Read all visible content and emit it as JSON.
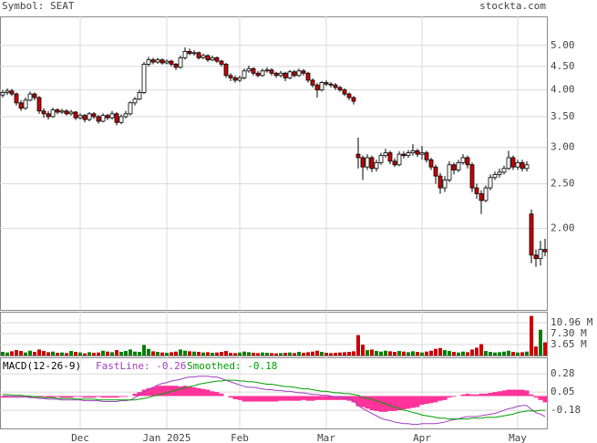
{
  "header": {
    "symbol": "Symbol: SEAT",
    "site": "stockta.com"
  },
  "chart_data": [
    {
      "type": "candlestick",
      "categories": [
        null,
        null,
        null,
        null,
        null,
        null,
        null,
        null,
        null,
        null,
        null,
        null,
        null,
        null,
        null,
        null,
        null,
        "Dec",
        null,
        null,
        null,
        null,
        null,
        null,
        null,
        null,
        null,
        null,
        null,
        null,
        null,
        null,
        null,
        null,
        null,
        null,
        "Jan 2025",
        null,
        null,
        null,
        null,
        null,
        null,
        null,
        null,
        null,
        null,
        null,
        null,
        null,
        null,
        null,
        "Feb",
        null,
        null,
        null,
        null,
        null,
        null,
        null,
        null,
        null,
        null,
        null,
        null,
        null,
        null,
        null,
        null,
        null,
        null,
        "Mar",
        null,
        null,
        null,
        null,
        null,
        null,
        null,
        null,
        null,
        null,
        null,
        null,
        null,
        null,
        null,
        null,
        null,
        null,
        null,
        null,
        "Apr",
        null,
        null,
        null,
        null,
        null,
        null,
        null,
        null,
        null,
        null,
        null,
        null,
        null,
        null,
        null,
        null,
        null,
        null,
        null,
        null,
        "May",
        null,
        null,
        null,
        null,
        null,
        null
      ],
      "open": [
        3.9,
        3.95,
        3.98,
        3.92,
        3.75,
        3.65,
        3.8,
        3.92,
        3.85,
        3.6,
        3.55,
        3.5,
        3.62,
        3.58,
        3.6,
        3.55,
        3.58,
        3.48,
        3.52,
        3.45,
        3.55,
        3.5,
        3.42,
        3.52,
        3.48,
        3.55,
        3.4,
        3.5,
        3.55,
        3.75,
        3.82,
        3.95,
        4.55,
        4.65,
        4.6,
        4.65,
        4.58,
        4.62,
        4.55,
        4.48,
        4.7,
        4.85,
        4.8,
        4.82,
        4.7,
        4.75,
        4.65,
        4.7,
        4.62,
        4.55,
        4.3,
        4.25,
        4.2,
        4.25,
        4.4,
        4.45,
        4.35,
        4.3,
        4.4,
        4.42,
        4.35,
        4.3,
        4.35,
        4.25,
        4.38,
        4.3,
        4.4,
        4.35,
        4.2,
        4.1,
        4.0,
        4.15,
        4.12,
        4.1,
        4.05,
        4.0,
        3.92,
        3.85,
        2.9,
        2.85,
        2.72,
        2.85,
        2.7,
        2.78,
        2.88,
        2.92,
        2.8,
        2.75,
        2.9,
        2.88,
        2.92,
        2.95,
        2.9,
        2.92,
        2.82,
        2.72,
        2.6,
        2.45,
        2.55,
        2.75,
        2.68,
        2.78,
        2.85,
        2.75,
        2.45,
        2.38,
        2.3,
        2.45,
        2.58,
        2.62,
        2.65,
        2.7,
        2.85,
        2.72,
        2.78,
        2.7,
        2.15,
        1.75,
        1.72,
        1.8
      ],
      "high": [
        4.0,
        4.03,
        4.02,
        3.95,
        3.8,
        3.85,
        3.97,
        3.95,
        3.88,
        3.65,
        3.6,
        3.66,
        3.65,
        3.64,
        3.63,
        3.62,
        3.6,
        3.56,
        3.55,
        3.58,
        3.58,
        3.53,
        3.56,
        3.55,
        3.6,
        3.58,
        3.54,
        3.6,
        3.78,
        3.86,
        4.0,
        4.6,
        4.72,
        4.7,
        4.7,
        4.68,
        4.66,
        4.65,
        4.58,
        4.75,
        4.95,
        4.92,
        4.88,
        4.85,
        4.8,
        4.78,
        4.75,
        4.73,
        4.65,
        4.58,
        4.35,
        4.3,
        4.3,
        4.45,
        4.52,
        4.48,
        4.4,
        4.45,
        4.48,
        4.46,
        4.38,
        4.4,
        4.38,
        4.42,
        4.42,
        4.45,
        4.44,
        4.38,
        4.24,
        4.14,
        4.18,
        4.2,
        4.16,
        4.14,
        4.08,
        4.03,
        3.95,
        3.88,
        3.15,
        2.88,
        2.9,
        2.88,
        2.82,
        2.92,
        2.98,
        2.95,
        2.84,
        2.94,
        2.94,
        2.96,
        3.05,
        2.98,
        3.02,
        2.95,
        2.85,
        2.75,
        2.64,
        2.6,
        2.8,
        2.78,
        2.82,
        2.9,
        2.88,
        2.78,
        2.5,
        2.42,
        2.48,
        2.62,
        2.66,
        2.7,
        2.74,
        2.95,
        2.88,
        2.82,
        2.82,
        2.8,
        2.2,
        1.8,
        1.88,
        1.9
      ],
      "low": [
        3.85,
        3.9,
        3.88,
        3.7,
        3.6,
        3.62,
        3.78,
        3.8,
        3.55,
        3.48,
        3.45,
        3.48,
        3.54,
        3.55,
        3.52,
        3.52,
        3.44,
        3.45,
        3.4,
        3.42,
        3.46,
        3.38,
        3.4,
        3.44,
        3.45,
        3.35,
        3.37,
        3.47,
        3.52,
        3.7,
        3.8,
        3.92,
        4.5,
        4.55,
        4.56,
        4.54,
        4.55,
        4.5,
        4.42,
        4.45,
        4.66,
        4.76,
        4.75,
        4.66,
        4.67,
        4.6,
        4.62,
        4.58,
        4.5,
        4.25,
        4.18,
        4.15,
        4.16,
        4.22,
        4.36,
        4.3,
        4.26,
        4.27,
        4.36,
        4.3,
        4.25,
        4.26,
        4.18,
        4.22,
        4.26,
        4.27,
        4.3,
        4.15,
        4.05,
        3.85,
        3.97,
        4.08,
        4.05,
        4.0,
        3.96,
        3.88,
        3.8,
        3.72,
        2.7,
        2.55,
        2.68,
        2.65,
        2.66,
        2.75,
        2.85,
        2.76,
        2.72,
        2.73,
        2.84,
        2.85,
        2.88,
        2.86,
        2.82,
        2.78,
        2.68,
        2.5,
        2.38,
        2.4,
        2.52,
        2.62,
        2.65,
        2.75,
        2.7,
        2.4,
        2.32,
        2.15,
        2.28,
        2.42,
        2.55,
        2.58,
        2.62,
        2.68,
        2.68,
        2.68,
        2.66,
        2.66,
        1.68,
        1.65,
        1.66,
        1.74
      ],
      "close": [
        3.95,
        3.98,
        3.92,
        3.75,
        3.65,
        3.8,
        3.92,
        3.85,
        3.6,
        3.55,
        3.5,
        3.62,
        3.58,
        3.6,
        3.55,
        3.58,
        3.48,
        3.52,
        3.45,
        3.55,
        3.5,
        3.42,
        3.52,
        3.48,
        3.55,
        3.4,
        3.5,
        3.55,
        3.75,
        3.82,
        3.95,
        4.55,
        4.65,
        4.6,
        4.65,
        4.58,
        4.62,
        4.55,
        4.48,
        4.7,
        4.85,
        4.8,
        4.82,
        4.7,
        4.75,
        4.65,
        4.7,
        4.62,
        4.55,
        4.3,
        4.25,
        4.2,
        4.25,
        4.4,
        4.45,
        4.35,
        4.3,
        4.4,
        4.42,
        4.35,
        4.3,
        4.35,
        4.25,
        4.38,
        4.3,
        4.4,
        4.35,
        4.2,
        4.1,
        4.0,
        4.15,
        4.12,
        4.1,
        4.05,
        4.0,
        3.92,
        3.85,
        3.78,
        2.85,
        2.72,
        2.85,
        2.7,
        2.78,
        2.88,
        2.92,
        2.8,
        2.75,
        2.9,
        2.88,
        2.92,
        2.95,
        2.9,
        2.92,
        2.82,
        2.72,
        2.6,
        2.45,
        2.55,
        2.75,
        2.68,
        2.78,
        2.85,
        2.75,
        2.45,
        2.38,
        2.3,
        2.45,
        2.58,
        2.62,
        2.65,
        2.7,
        2.85,
        2.72,
        2.78,
        2.7,
        2.75,
        1.75,
        1.72,
        1.8,
        1.78
      ],
      "ylim": [
        1.33,
        5.78
      ],
      "log_scale": true,
      "yticks": [
        {
          "value": 5,
          "label": "5.00"
        },
        {
          "value": 4.5,
          "label": "4.50"
        },
        {
          "value": 4,
          "label": "4.00"
        },
        {
          "value": 3.5,
          "label": "3.50"
        },
        {
          "value": 3,
          "label": "3.00"
        },
        {
          "value": 2.5,
          "label": "2.50"
        },
        {
          "value": 2,
          "label": "2.00"
        }
      ],
      "up_color": "#ffffff",
      "down_color": "#cc0000",
      "grid": true
    },
    {
      "type": "bar",
      "values": [
        1.2,
        1.0,
        1.4,
        1.8,
        1.5,
        1.0,
        1.6,
        1.2,
        2.0,
        1.5,
        1.1,
        1.3,
        0.9,
        1.0,
        0.8,
        1.5,
        1.2,
        1.0,
        0.7,
        1.1,
        0.9,
        1.0,
        1.6,
        1.3,
        1.1,
        1.8,
        1.2,
        1.5,
        2.0,
        1.3,
        1.2,
        3.5,
        2.2,
        1.4,
        1.2,
        1.0,
        0.9,
        1.1,
        1.3,
        2.0,
        1.6,
        1.4,
        1.3,
        1.2,
        1.0,
        1.1,
        0.9,
        1.0,
        1.2,
        1.5,
        0.9,
        0.8,
        1.0,
        1.3,
        1.1,
        0.9,
        0.8,
        1.0,
        0.9,
        0.8,
        0.7,
        0.8,
        0.9,
        1.0,
        0.8,
        1.2,
        0.9,
        1.1,
        1.3,
        1.6,
        1.2,
        0.9,
        0.8,
        0.9,
        1.0,
        1.1,
        1.2,
        1.4,
        6.8,
        3.6,
        1.8,
        2.0,
        1.5,
        1.3,
        1.6,
        1.4,
        1.2,
        1.5,
        1.3,
        1.1,
        1.4,
        1.2,
        1.0,
        1.3,
        1.6,
        2.2,
        2.5,
        1.8,
        1.5,
        1.2,
        1.0,
        1.3,
        1.1,
        2.0,
        2.6,
        3.8,
        1.5,
        1.2,
        1.0,
        1.1,
        1.3,
        1.6,
        1.2,
        1.0,
        1.1,
        1.3,
        13.2,
        3.0,
        8.6,
        4.4
      ],
      "ylim": [
        0,
        14.6
      ],
      "yticks": [
        {
          "value": 10.96,
          "label": "10.96 M"
        },
        {
          "value": 7.3,
          "label": "7.30 M"
        },
        {
          "value": 3.65,
          "label": "3.65 M"
        }
      ],
      "up_color": "#008000",
      "down_color": "#cc0000"
    },
    {
      "type": "macd",
      "title": "MACD(12-26-9)",
      "series": [
        {
          "name": "FastLine: -0.26",
          "color": "#a040c0",
          "values": [
            0.0,
            0.0,
            -0.01,
            -0.01,
            -0.01,
            -0.01,
            -0.02,
            -0.02,
            -0.03,
            -0.03,
            -0.04,
            -0.04,
            -0.04,
            -0.05,
            -0.05,
            -0.05,
            -0.05,
            -0.05,
            -0.06,
            -0.06,
            -0.06,
            -0.06,
            -0.07,
            -0.07,
            -0.07,
            -0.07,
            -0.06,
            -0.06,
            -0.05,
            -0.02,
            0.01,
            0.05,
            0.08,
            0.11,
            0.14,
            0.16,
            0.17,
            0.19,
            0.2,
            0.21,
            0.23,
            0.24,
            0.24,
            0.25,
            0.25,
            0.25,
            0.24,
            0.24,
            0.22,
            0.2,
            0.18,
            0.16,
            0.14,
            0.12,
            0.11,
            0.11,
            0.1,
            0.09,
            0.08,
            0.08,
            0.07,
            0.07,
            0.06,
            0.06,
            0.05,
            0.04,
            0.04,
            0.03,
            0.02,
            0.02,
            0.01,
            0.01,
            0.0,
            -0.01,
            -0.01,
            -0.02,
            -0.03,
            -0.06,
            -0.12,
            -0.16,
            -0.19,
            -0.22,
            -0.25,
            -0.28,
            -0.3,
            -0.31,
            -0.33,
            -0.34,
            -0.35,
            -0.35,
            -0.36,
            -0.36,
            -0.35,
            -0.35,
            -0.35,
            -0.35,
            -0.34,
            -0.33,
            -0.31,
            -0.3,
            -0.29,
            -0.27,
            -0.26,
            -0.26,
            -0.26,
            -0.25,
            -0.24,
            -0.23,
            -0.22,
            -0.2,
            -0.18,
            -0.16,
            -0.15,
            -0.13,
            -0.12,
            -0.12,
            -0.17,
            -0.21,
            -0.23,
            -0.26
          ]
        },
        {
          "name": "Smoothed: -0.18",
          "color": "#00a000",
          "values": [
            0.02,
            0.02,
            0.01,
            0.01,
            0.01,
            0.0,
            0.0,
            -0.01,
            -0.01,
            -0.02,
            -0.02,
            -0.02,
            -0.03,
            -0.03,
            -0.03,
            -0.03,
            -0.04,
            -0.04,
            -0.04,
            -0.04,
            -0.04,
            -0.05,
            -0.05,
            -0.05,
            -0.05,
            -0.05,
            -0.05,
            -0.05,
            -0.05,
            -0.05,
            -0.04,
            -0.03,
            -0.02,
            0.0,
            0.01,
            0.03,
            0.04,
            0.06,
            0.07,
            0.09,
            0.1,
            0.12,
            0.13,
            0.15,
            0.16,
            0.17,
            0.18,
            0.19,
            0.19,
            0.2,
            0.2,
            0.2,
            0.19,
            0.19,
            0.18,
            0.18,
            0.17,
            0.16,
            0.15,
            0.15,
            0.14,
            0.13,
            0.12,
            0.12,
            0.11,
            0.1,
            0.09,
            0.09,
            0.08,
            0.07,
            0.06,
            0.06,
            0.05,
            0.04,
            0.04,
            0.03,
            0.03,
            0.02,
            0.01,
            -0.02,
            -0.03,
            -0.04,
            -0.06,
            -0.08,
            -0.1,
            -0.12,
            -0.14,
            -0.16,
            -0.18,
            -0.19,
            -0.21,
            -0.22,
            -0.24,
            -0.25,
            -0.26,
            -0.27,
            -0.28,
            -0.28,
            -0.29,
            -0.29,
            -0.29,
            -0.29,
            -0.29,
            -0.28,
            -0.28,
            -0.28,
            -0.27,
            -0.27,
            -0.27,
            -0.26,
            -0.25,
            -0.24,
            -0.23,
            -0.21,
            -0.2,
            -0.19,
            -0.19,
            -0.19,
            -0.18,
            -0.18
          ]
        }
      ],
      "histogram": {
        "color": "#ff3399",
        "values": [
          -0.02,
          -0.02,
          -0.02,
          -0.02,
          -0.02,
          -0.01,
          -0.02,
          -0.01,
          -0.02,
          -0.01,
          -0.02,
          -0.02,
          -0.01,
          -0.02,
          -0.02,
          -0.02,
          -0.01,
          -0.01,
          -0.02,
          -0.02,
          -0.02,
          -0.01,
          -0.02,
          -0.02,
          -0.02,
          -0.02,
          -0.01,
          -0.01,
          0.0,
          0.03,
          0.05,
          0.08,
          0.1,
          0.11,
          0.13,
          0.13,
          0.13,
          0.13,
          0.13,
          0.12,
          0.13,
          0.12,
          0.11,
          0.1,
          0.09,
          0.08,
          0.06,
          0.05,
          0.03,
          0.0,
          -0.02,
          -0.04,
          -0.05,
          -0.07,
          -0.07,
          -0.07,
          -0.07,
          -0.07,
          -0.07,
          -0.07,
          -0.07,
          -0.06,
          -0.06,
          -0.06,
          -0.06,
          -0.06,
          -0.05,
          -0.06,
          -0.06,
          -0.05,
          -0.05,
          -0.05,
          -0.05,
          -0.05,
          -0.05,
          -0.05,
          -0.06,
          -0.08,
          -0.13,
          -0.14,
          -0.16,
          -0.18,
          -0.19,
          -0.2,
          -0.2,
          -0.19,
          -0.19,
          -0.18,
          -0.17,
          -0.16,
          -0.15,
          -0.14,
          -0.11,
          -0.1,
          -0.09,
          -0.08,
          -0.06,
          -0.05,
          -0.02,
          -0.01,
          0.0,
          0.02,
          0.03,
          0.02,
          0.02,
          0.03,
          0.03,
          0.04,
          0.05,
          0.06,
          0.07,
          0.08,
          0.08,
          0.08,
          0.08,
          0.07,
          0.02,
          -0.02,
          -0.05,
          -0.08
        ]
      },
      "ylim": [
        -0.41,
        0.49
      ],
      "yticks": [
        0.28,
        0.05,
        -0.18
      ],
      "grid": true
    }
  ]
}
